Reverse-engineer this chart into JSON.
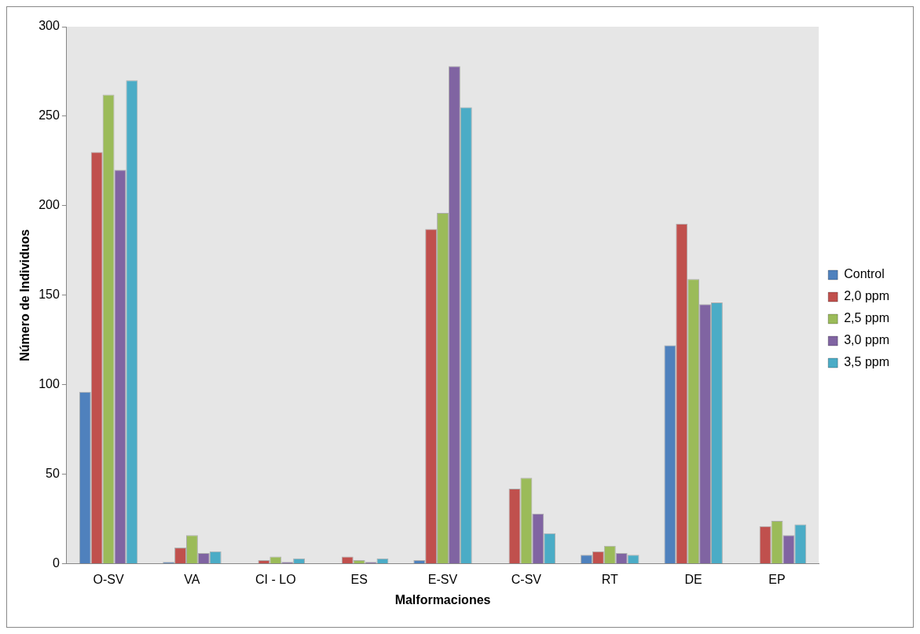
{
  "chart_data": {
    "type": "bar",
    "xlabel": "Malformaciones",
    "ylabel": "Número de Individuos",
    "categories": [
      "O-SV",
      "VA",
      "CI - LO",
      "ES",
      "E-SV",
      "C-SV",
      "RT",
      "DE",
      "EP"
    ],
    "series": [
      {
        "name": "Control",
        "color": "#4f81bd",
        "values": [
          96,
          1,
          0,
          0,
          2,
          0,
          5,
          122,
          0
        ]
      },
      {
        "name": "2,0 ppm",
        "color": "#c0504d",
        "values": [
          230,
          9,
          2,
          4,
          187,
          42,
          7,
          190,
          21
        ]
      },
      {
        "name": "2,5 ppm",
        "color": "#9bbb59",
        "values": [
          262,
          16,
          4,
          2,
          196,
          48,
          10,
          159,
          24
        ]
      },
      {
        "name": "3,0 ppm",
        "color": "#8064a2",
        "values": [
          220,
          6,
          1,
          1,
          278,
          28,
          6,
          145,
          16
        ]
      },
      {
        "name": "3,5 ppm",
        "color": "#4bacc6",
        "values": [
          270,
          7,
          3,
          3,
          255,
          17,
          5,
          146,
          22
        ]
      }
    ],
    "ylim": [
      0,
      300
    ],
    "yticks": [
      0,
      50,
      100,
      150,
      200,
      250,
      300
    ],
    "grid": false,
    "legend": "right"
  }
}
